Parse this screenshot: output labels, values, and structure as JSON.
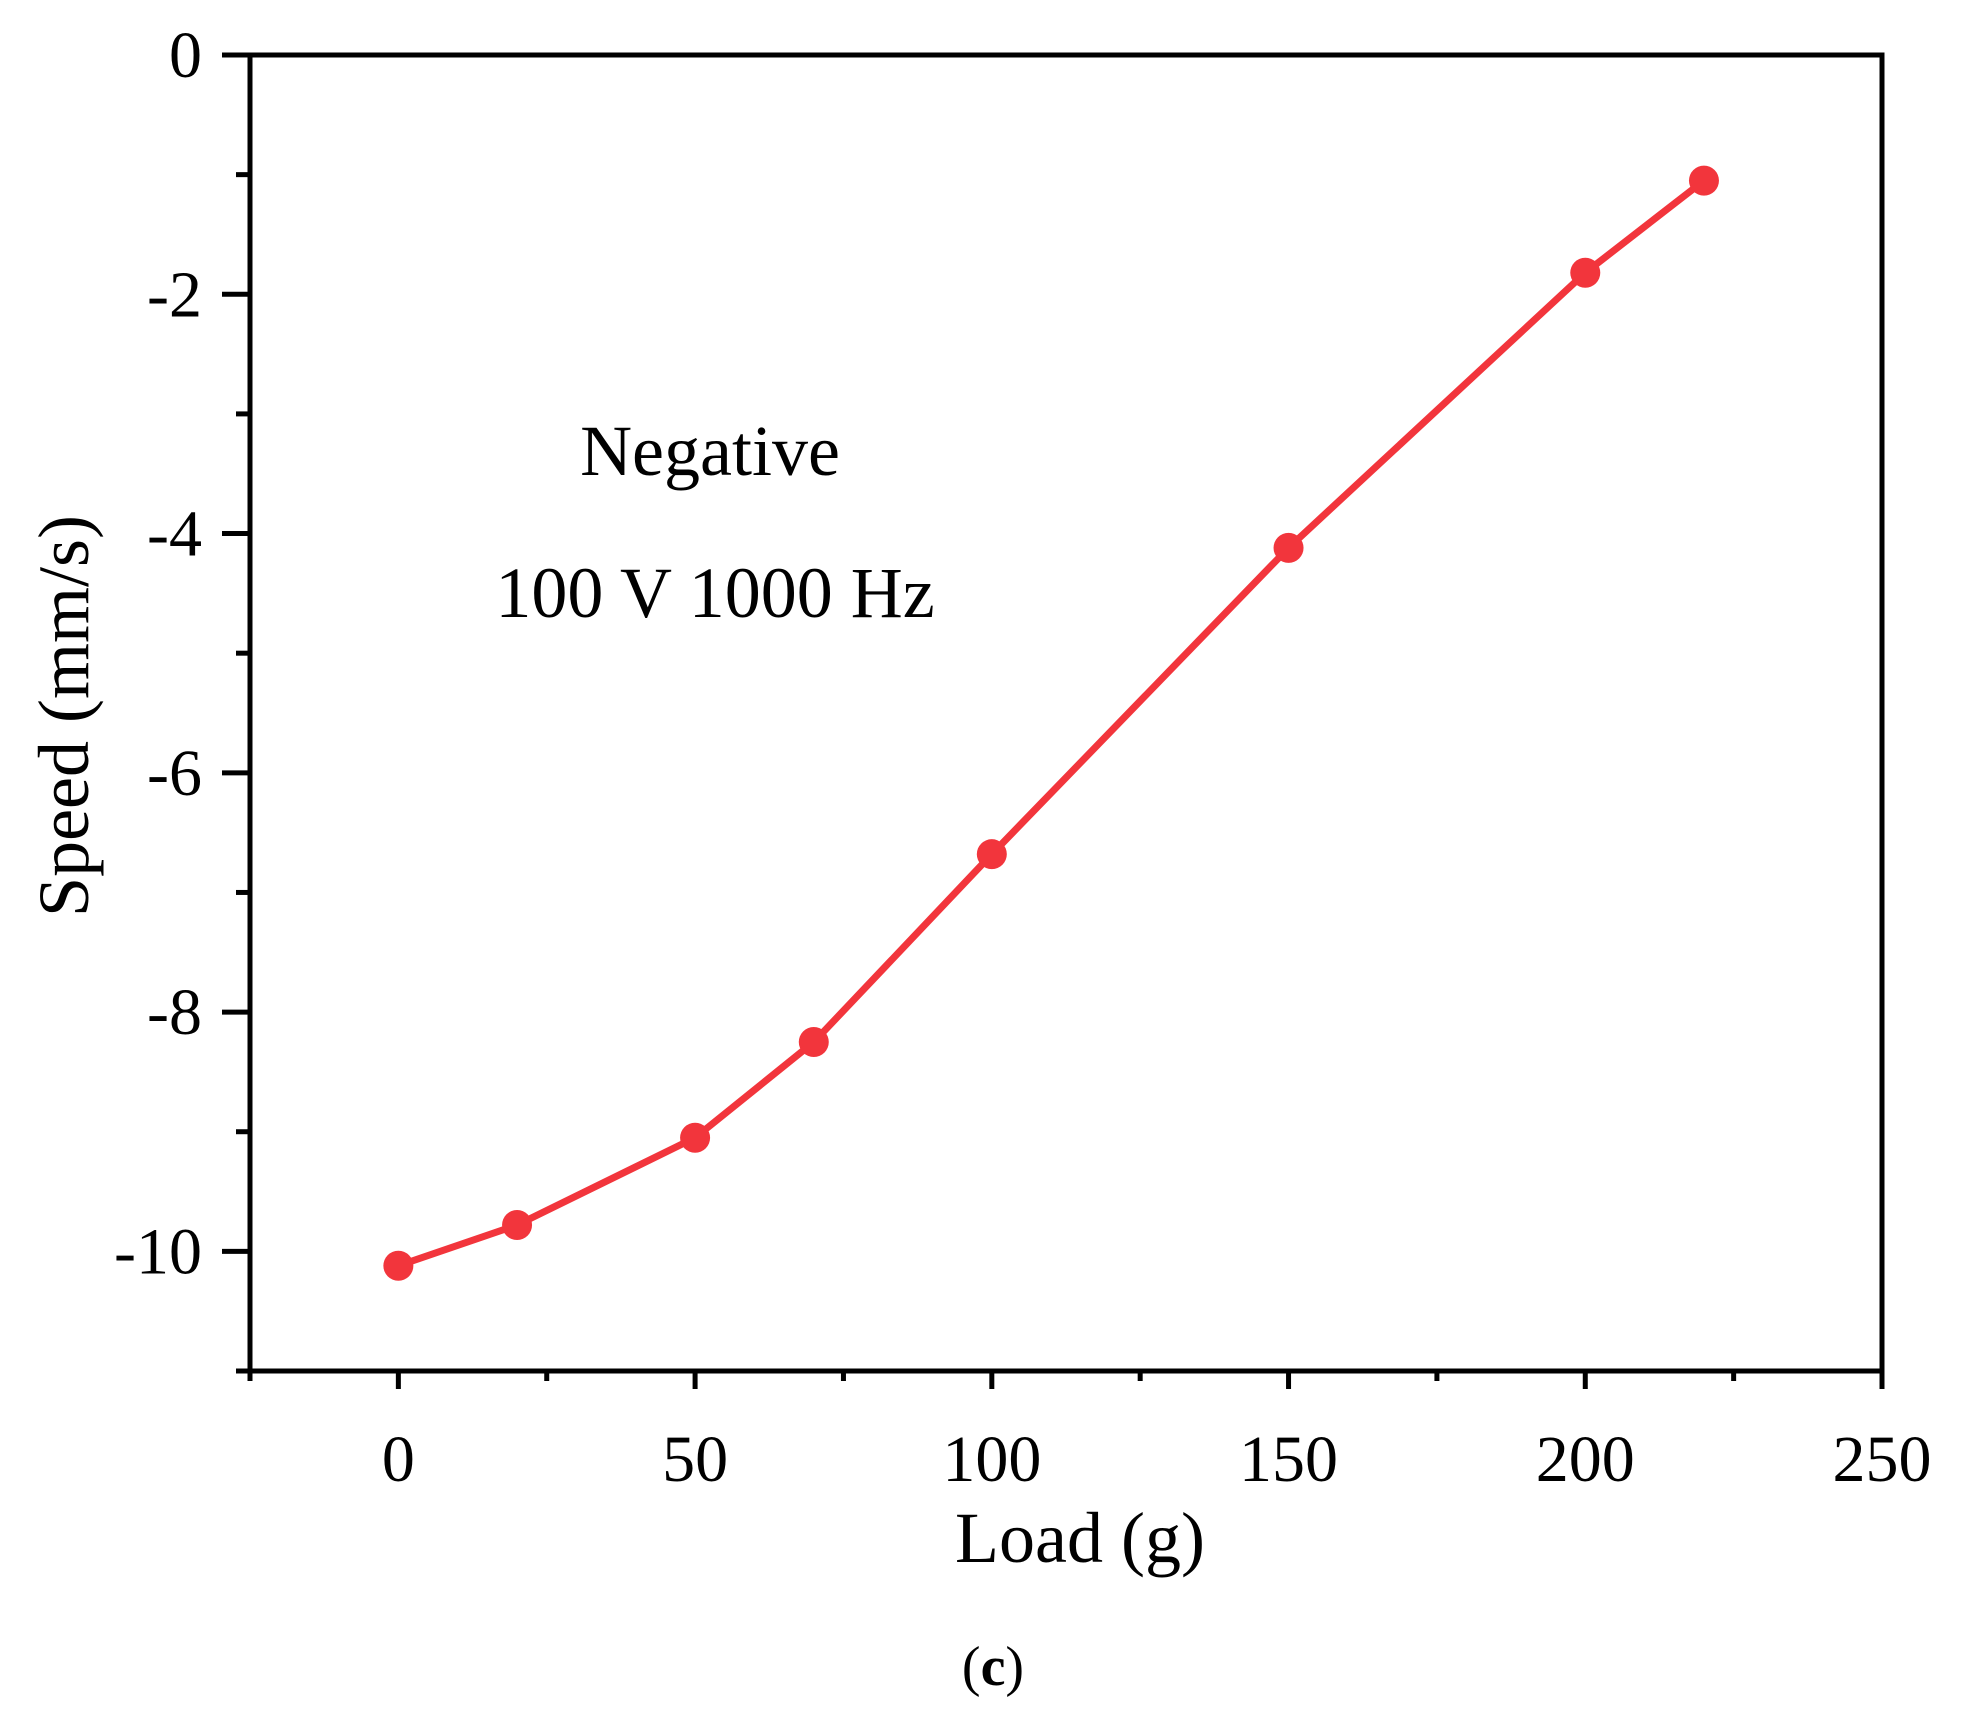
{
  "chart_data": {
    "type": "line",
    "title": "",
    "xlabel": "Load (g)",
    "ylabel": "Speed (mm/s)",
    "xlim": [
      -25,
      250
    ],
    "ylim": [
      -11,
      0
    ],
    "x_ticks": [
      0,
      50,
      100,
      150,
      200,
      250
    ],
    "x_tick_labels": [
      "0",
      "50",
      "100",
      "150",
      "200",
      "250"
    ],
    "y_ticks": [
      0,
      -2,
      -4,
      -6,
      -8,
      -10
    ],
    "y_tick_labels": [
      "0",
      "-2",
      "-4",
      "-6",
      "-8",
      "-10"
    ],
    "grid": false,
    "series": [
      {
        "name": "Negative 100 V 1000 Hz",
        "color": "#f2353c",
        "x": [
          0,
          20,
          50,
          70,
          100,
          150,
          200,
          220
        ],
        "values": [
          -10.12,
          -9.78,
          -9.05,
          -8.25,
          -6.68,
          -4.12,
          -1.82,
          -1.05
        ]
      }
    ],
    "annotations": [
      "Negative",
      "100 V 1000 Hz"
    ]
  },
  "caption": {
    "open": "(",
    "letter": "c",
    "close": ")"
  }
}
